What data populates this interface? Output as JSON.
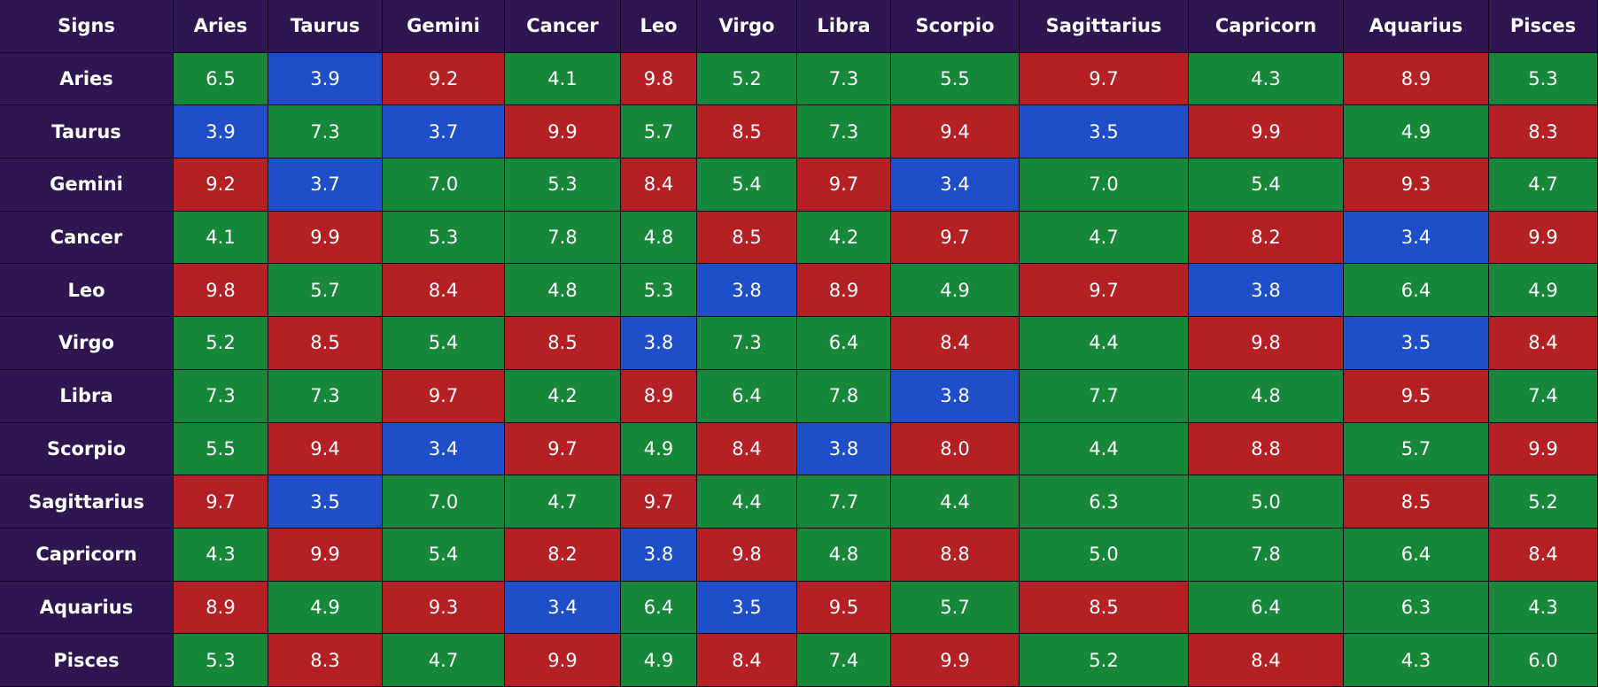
{
  "table": {
    "header": [
      "Signs",
      "Aries",
      "Taurus",
      "Gemini",
      "Cancer",
      "Leo",
      "Virgo",
      "Libra",
      "Scorpio",
      "Sagittarius",
      "Capricorn",
      "Aquarius",
      "Pisces"
    ],
    "rows": [
      [
        "Aries",
        "6.5",
        "3.9",
        "9.2",
        "4.1",
        "9.8",
        "5.2",
        "7.3",
        "5.5",
        "9.7",
        "4.3",
        "8.9",
        "5.3"
      ],
      [
        "Taurus",
        "3.9",
        "7.3",
        "3.7",
        "9.9",
        "5.7",
        "8.5",
        "7.3",
        "9.4",
        "3.5",
        "9.9",
        "4.9",
        "8.3"
      ],
      [
        "Gemini",
        "9.2",
        "3.7",
        "7.0",
        "5.3",
        "8.4",
        "5.4",
        "9.7",
        "3.4",
        "7.0",
        "5.4",
        "9.3",
        "4.7"
      ],
      [
        "Cancer",
        "4.1",
        "9.9",
        "5.3",
        "7.8",
        "4.8",
        "8.5",
        "4.2",
        "9.7",
        "4.7",
        "8.2",
        "3.4",
        "9.9"
      ],
      [
        "Leo",
        "9.8",
        "5.7",
        "8.4",
        "4.8",
        "5.3",
        "3.8",
        "8.9",
        "4.9",
        "9.7",
        "3.8",
        "6.4",
        "4.9"
      ],
      [
        "Virgo",
        "5.2",
        "8.5",
        "5.4",
        "8.5",
        "3.8",
        "7.3",
        "6.4",
        "8.4",
        "4.4",
        "9.8",
        "3.5",
        "8.4"
      ],
      [
        "Libra",
        "7.3",
        "7.3",
        "9.7",
        "4.2",
        "8.9",
        "6.4",
        "7.8",
        "3.8",
        "7.7",
        "4.8",
        "9.5",
        "7.4"
      ],
      [
        "Scorpio",
        "5.5",
        "9.4",
        "3.4",
        "9.7",
        "4.9",
        "8.4",
        "3.8",
        "8.0",
        "4.4",
        "8.8",
        "5.7",
        "9.9"
      ],
      [
        "Sagittarius",
        "9.7",
        "3.5",
        "7.0",
        "4.7",
        "9.7",
        "4.4",
        "7.7",
        "4.4",
        "6.3",
        "5.0",
        "8.5",
        "5.2"
      ],
      [
        "Capricorn",
        "4.3",
        "9.9",
        "5.4",
        "8.2",
        "3.8",
        "9.8",
        "4.8",
        "8.8",
        "5.0",
        "7.8",
        "6.4",
        "8.4"
      ],
      [
        "Aquarius",
        "8.9",
        "4.9",
        "9.3",
        "3.4",
        "6.4",
        "3.5",
        "9.5",
        "5.7",
        "8.5",
        "6.4",
        "6.3",
        "4.3"
      ],
      [
        "Pisces",
        "5.3",
        "8.3",
        "4.7",
        "9.9",
        "4.9",
        "8.4",
        "7.4",
        "9.9",
        "5.2",
        "8.4",
        "4.3",
        "6.0"
      ]
    ]
  }
}
